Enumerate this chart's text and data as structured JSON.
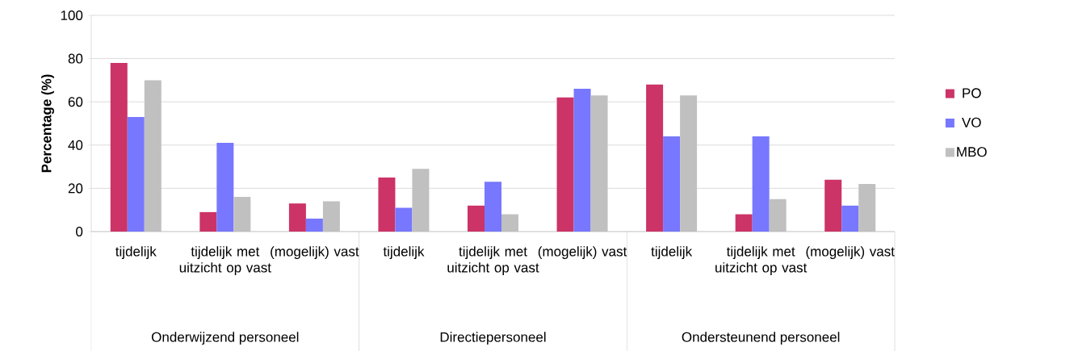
{
  "chart_data": {
    "type": "bar",
    "ylabel": "Percentage (%)",
    "categories": [
      "tijdelijk",
      "tijdelijk met uitzicht op vast",
      "(mogelijk) vast",
      "tijdelijk",
      "tijdelijk met uitzicht op vast",
      "(mogelijk) vast",
      "tijdelijk",
      "tijdelijk met uitzicht op vast",
      "(mogelijk) vast"
    ],
    "series": [
      {
        "name": "PO",
        "color": "#cc3366",
        "values": [
          78,
          9,
          13,
          25,
          12,
          62,
          68,
          8,
          24
        ]
      },
      {
        "name": "VO",
        "color": "#7777ff",
        "values": [
          53,
          41,
          6,
          11,
          23,
          66,
          44,
          44,
          12
        ]
      },
      {
        "name": "MBO",
        "color": "#c0c0c0",
        "values": [
          70,
          16,
          14,
          29,
          8,
          63,
          63,
          15,
          22
        ]
      }
    ],
    "annotations": [
      "Onderwijzend personeel",
      "Directiepersoneel",
      "Ondersteunend personeel"
    ],
    "ylim": [
      0,
      100
    ],
    "yticks": [
      0,
      20,
      40,
      60,
      80,
      100
    ],
    "grid": "y",
    "legend": "right"
  }
}
